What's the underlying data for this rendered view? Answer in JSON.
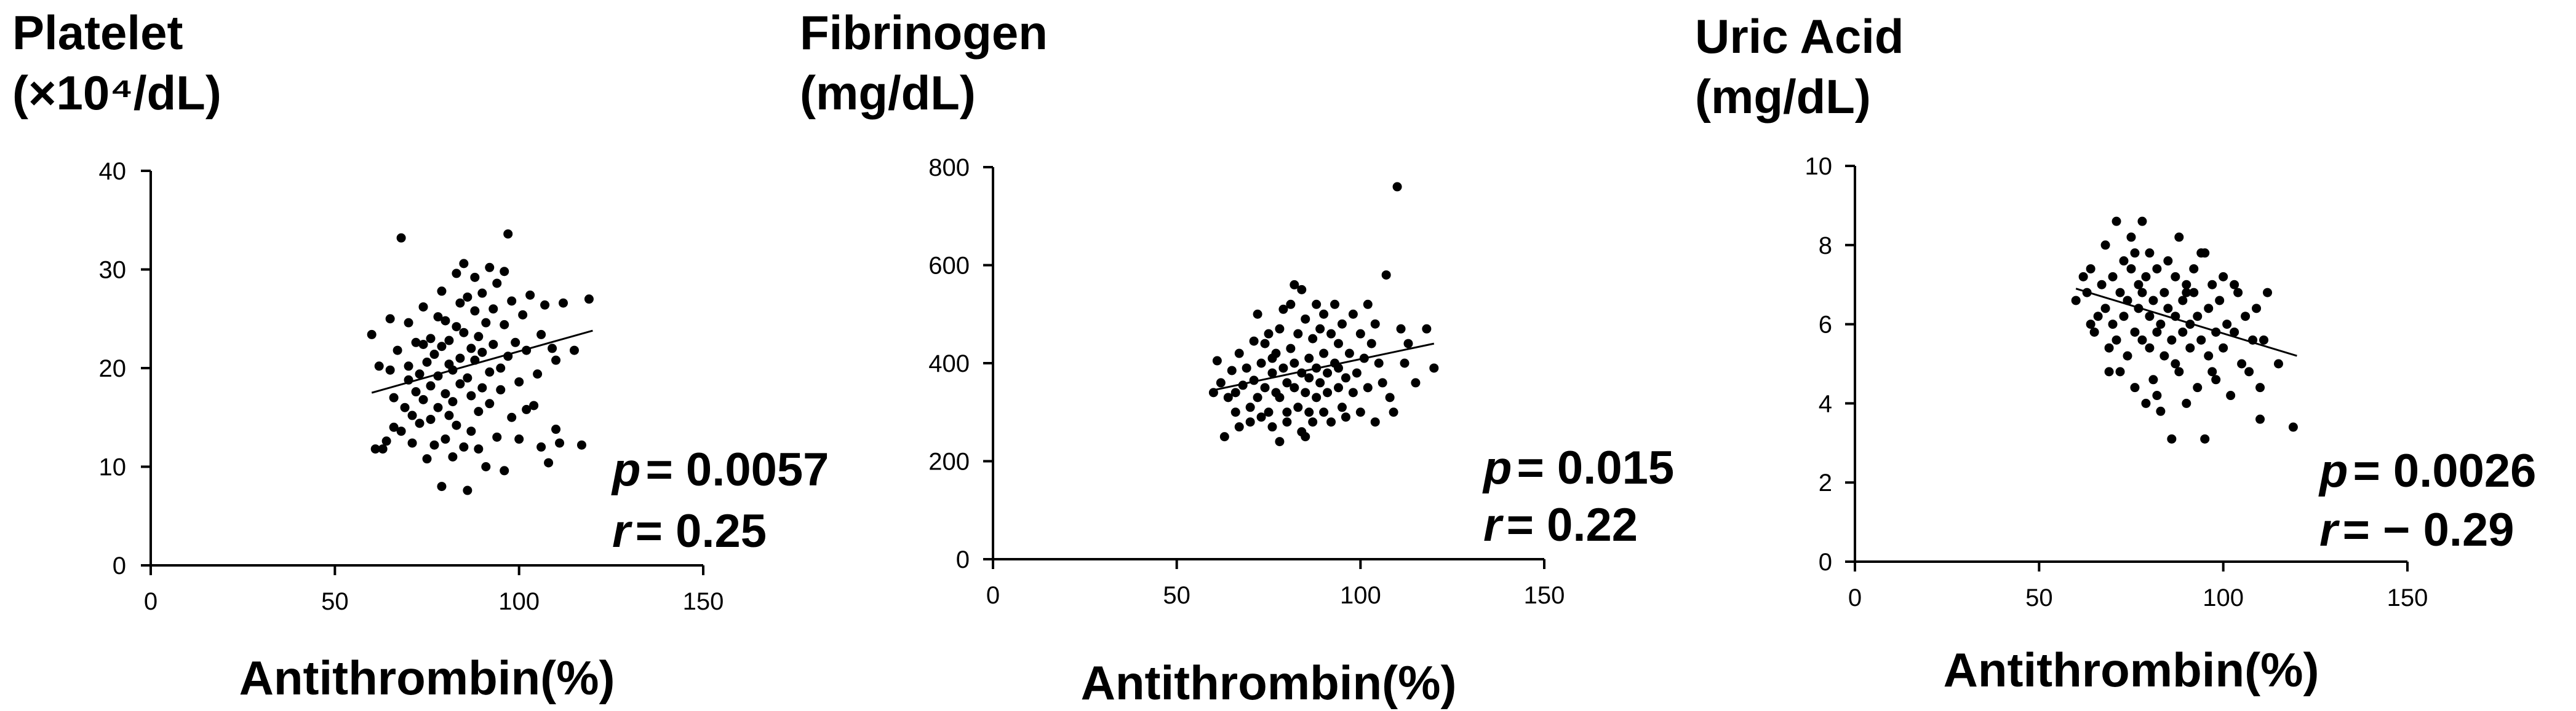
{
  "chart_data": [
    {
      "type": "scatter",
      "ylabel_lines": [
        "Platelet",
        "(×10⁴/dL)"
      ],
      "xlabel": "Antithrombin(%)",
      "xlim": [
        0,
        150
      ],
      "ylim": [
        0,
        40
      ],
      "xticks": [
        0,
        50,
        100,
        150
      ],
      "yticks": [
        0,
        10,
        20,
        30,
        40
      ],
      "stats": {
        "p_label": "p",
        "p_value": "= 0.0057",
        "r_label": "r",
        "r_value": "= 0.25"
      },
      "trend": [
        [
          60,
          17.5
        ],
        [
          120,
          23.8
        ]
      ],
      "points": [
        [
          60,
          23.4
        ],
        [
          61,
          11.8
        ],
        [
          63,
          11.8
        ],
        [
          64,
          12.6
        ],
        [
          65,
          19.8
        ],
        [
          66,
          17.0
        ],
        [
          66,
          14.0
        ],
        [
          67,
          21.8
        ],
        [
          68,
          33.2
        ],
        [
          68,
          13.6
        ],
        [
          69,
          16.0
        ],
        [
          70,
          18.8
        ],
        [
          70,
          20.2
        ],
        [
          71,
          15.2
        ],
        [
          71,
          12.4
        ],
        [
          72,
          22.6
        ],
        [
          72,
          17.6
        ],
        [
          73,
          14.4
        ],
        [
          73,
          19.4
        ],
        [
          74,
          26.2
        ],
        [
          74,
          16.8
        ],
        [
          75,
          20.6
        ],
        [
          75,
          10.8
        ],
        [
          76,
          23.0
        ],
        [
          76,
          18.2
        ],
        [
          76,
          14.8
        ],
        [
          77,
          21.4
        ],
        [
          77,
          12.2
        ],
        [
          78,
          25.2
        ],
        [
          78,
          19.2
        ],
        [
          78,
          16.0
        ],
        [
          79,
          8.0
        ],
        [
          79,
          22.2
        ],
        [
          79,
          27.8
        ],
        [
          80,
          24.8
        ],
        [
          80,
          17.4
        ],
        [
          80,
          12.8
        ],
        [
          81,
          20.4
        ],
        [
          81,
          22.8
        ],
        [
          82,
          16.6
        ],
        [
          82,
          19.8
        ],
        [
          82,
          11.0
        ],
        [
          83,
          29.6
        ],
        [
          83,
          24.2
        ],
        [
          83,
          14.2
        ],
        [
          84,
          21.0
        ],
        [
          84,
          26.6
        ],
        [
          84,
          18.4
        ],
        [
          85,
          30.6
        ],
        [
          85,
          23.6
        ],
        [
          85,
          12.0
        ],
        [
          86,
          19.0
        ],
        [
          86,
          7.6
        ],
        [
          86,
          27.2
        ],
        [
          87,
          22.0
        ],
        [
          87,
          17.2
        ],
        [
          87,
          13.6
        ],
        [
          88,
          25.8
        ],
        [
          88,
          20.8
        ],
        [
          88,
          29.2
        ],
        [
          89,
          15.6
        ],
        [
          89,
          23.2
        ],
        [
          90,
          18.0
        ],
        [
          90,
          27.6
        ],
        [
          90,
          21.6
        ],
        [
          91,
          10.0
        ],
        [
          91,
          24.6
        ],
        [
          92,
          30.2
        ],
        [
          92,
          19.6
        ],
        [
          92,
          16.4
        ],
        [
          93,
          26.0
        ],
        [
          93,
          22.4
        ],
        [
          94,
          13.0
        ],
        [
          94,
          28.6
        ],
        [
          95,
          20.0
        ],
        [
          95,
          17.8
        ],
        [
          96,
          24.4
        ],
        [
          96,
          9.6
        ],
        [
          97,
          33.6
        ],
        [
          97,
          21.2
        ],
        [
          98,
          26.8
        ],
        [
          98,
          15.0
        ],
        [
          99,
          22.6
        ],
        [
          100,
          18.6
        ],
        [
          100,
          12.8
        ],
        [
          101,
          25.4
        ],
        [
          102,
          21.8
        ],
        [
          103,
          27.4
        ],
        [
          104,
          16.2
        ],
        [
          105,
          19.4
        ],
        [
          106,
          23.4
        ],
        [
          106,
          12.0
        ],
        [
          107,
          26.4
        ],
        [
          108,
          10.4
        ],
        [
          109,
          22.0
        ],
        [
          110,
          13.8
        ],
        [
          110,
          20.8
        ],
        [
          111,
          12.4
        ],
        [
          112,
          26.6
        ],
        [
          115,
          21.8
        ],
        [
          117,
          12.2
        ],
        [
          119,
          27.0
        ],
        [
          62,
          20.2
        ],
        [
          65,
          25.0
        ],
        [
          70,
          24.6
        ],
        [
          74,
          22.4
        ],
        [
          81,
          15.2
        ],
        [
          89,
          11.8
        ],
        [
          96,
          29.8
        ],
        [
          102,
          15.8
        ]
      ]
    },
    {
      "type": "scatter",
      "ylabel_lines": [
        "Fibrinogen",
        "(mg/dL)"
      ],
      "xlabel": "Antithrombin(%)",
      "xlim": [
        0,
        150
      ],
      "ylim": [
        0,
        800
      ],
      "xticks": [
        0,
        50,
        100,
        150
      ],
      "yticks": [
        0,
        200,
        400,
        600,
        800
      ],
      "stats": {
        "p_label": "p",
        "p_value": "= 0.015",
        "r_label": "r",
        "r_value": "= 0.22"
      },
      "trend": [
        [
          60,
          345
        ],
        [
          120,
          440
        ]
      ],
      "points": [
        [
          60,
          340
        ],
        [
          61,
          405
        ],
        [
          62,
          360
        ],
        [
          63,
          250
        ],
        [
          64,
          330
        ],
        [
          65,
          385
        ],
        [
          66,
          300
        ],
        [
          67,
          420
        ],
        [
          67,
          270
        ],
        [
          68,
          355
        ],
        [
          69,
          390
        ],
        [
          70,
          310
        ],
        [
          70,
          280
        ],
        [
          71,
          445
        ],
        [
          71,
          365
        ],
        [
          72,
          500
        ],
        [
          72,
          330
        ],
        [
          73,
          400
        ],
        [
          73,
          290
        ],
        [
          74,
          350
        ],
        [
          74,
          440
        ],
        [
          75,
          300
        ],
        [
          75,
          460
        ],
        [
          76,
          380
        ],
        [
          76,
          270
        ],
        [
          77,
          420
        ],
        [
          77,
          340
        ],
        [
          78,
          330
        ],
        [
          78,
          470
        ],
        [
          78,
          240
        ],
        [
          79,
          390
        ],
        [
          79,
          510
        ],
        [
          80,
          300
        ],
        [
          80,
          360
        ],
        [
          80,
          280
        ],
        [
          81,
          430
        ],
        [
          81,
          520
        ],
        [
          82,
          350
        ],
        [
          82,
          400
        ],
        [
          82,
          560
        ],
        [
          83,
          310
        ],
        [
          83,
          460
        ],
        [
          84,
          380
        ],
        [
          84,
          260
        ],
        [
          84,
          550
        ],
        [
          85,
          340
        ],
        [
          85,
          490
        ],
        [
          86,
          410
        ],
        [
          86,
          300
        ],
        [
          86,
          370
        ],
        [
          87,
          450
        ],
        [
          87,
          280
        ],
        [
          88,
          390
        ],
        [
          88,
          520
        ],
        [
          88,
          330
        ],
        [
          89,
          360
        ],
        [
          89,
          470
        ],
        [
          90,
          300
        ],
        [
          90,
          420
        ],
        [
          90,
          500
        ],
        [
          91,
          340
        ],
        [
          91,
          380
        ],
        [
          92,
          460
        ],
        [
          92,
          280
        ],
        [
          93,
          400
        ],
        [
          93,
          520
        ],
        [
          94,
          350
        ],
        [
          94,
          440
        ],
        [
          95,
          310
        ],
        [
          95,
          480
        ],
        [
          96,
          370
        ],
        [
          96,
          290
        ],
        [
          97,
          420
        ],
        [
          98,
          500
        ],
        [
          98,
          340
        ],
        [
          99,
          380
        ],
        [
          100,
          460
        ],
        [
          100,
          300
        ],
        [
          101,
          410
        ],
        [
          102,
          520
        ],
        [
          102,
          350
        ],
        [
          103,
          440
        ],
        [
          104,
          280
        ],
        [
          105,
          400
        ],
        [
          106,
          360
        ],
        [
          107,
          580
        ],
        [
          108,
          330
        ],
        [
          109,
          300
        ],
        [
          110,
          760
        ],
        [
          111,
          470
        ],
        [
          112,
          400
        ],
        [
          113,
          440
        ],
        [
          115,
          360
        ],
        [
          118,
          470
        ],
        [
          120,
          390
        ],
        [
          66,
          340
        ],
        [
          76,
          410
        ],
        [
          85,
          250
        ],
        [
          94,
          390
        ],
        [
          104,
          480
        ]
      ]
    },
    {
      "type": "scatter",
      "ylabel_lines": [
        "Uric Acid",
        "(mg/dL)"
      ],
      "xlabel": "Antithrombin(%)",
      "xlim": [
        0,
        150
      ],
      "ylim": [
        0,
        10
      ],
      "xticks": [
        0,
        50,
        100,
        150
      ],
      "yticks": [
        0,
        2,
        4,
        6,
        8,
        10
      ],
      "stats": {
        "p_label": "p",
        "p_value": "= 0.0026",
        "r_label": "r",
        "r_value": "= − 0.29"
      },
      "trend": [
        [
          60,
          6.9
        ],
        [
          120,
          5.2
        ]
      ],
      "points": [
        [
          60,
          6.6
        ],
        [
          62,
          7.2
        ],
        [
          63,
          6.8
        ],
        [
          64,
          7.4
        ],
        [
          65,
          5.8
        ],
        [
          66,
          6.2
        ],
        [
          67,
          7.0
        ],
        [
          68,
          8.0
        ],
        [
          68,
          6.4
        ],
        [
          69,
          5.4
        ],
        [
          70,
          7.2
        ],
        [
          70,
          6.0
        ],
        [
          71,
          8.6
        ],
        [
          71,
          5.6
        ],
        [
          72,
          6.8
        ],
        [
          72,
          4.8
        ],
        [
          73,
          7.6
        ],
        [
          73,
          6.2
        ],
        [
          74,
          5.2
        ],
        [
          74,
          6.6
        ],
        [
          75,
          8.2
        ],
        [
          75,
          7.4
        ],
        [
          76,
          5.8
        ],
        [
          76,
          4.4
        ],
        [
          77,
          6.4
        ],
        [
          77,
          7.0
        ],
        [
          78,
          8.6
        ],
        [
          78,
          5.6
        ],
        [
          78,
          6.8
        ],
        [
          79,
          4.0
        ],
        [
          79,
          7.2
        ],
        [
          80,
          6.2
        ],
        [
          80,
          5.4
        ],
        [
          80,
          7.8
        ],
        [
          81,
          6.6
        ],
        [
          81,
          4.6
        ],
        [
          82,
          5.8
        ],
        [
          82,
          7.4
        ],
        [
          83,
          6.0
        ],
        [
          83,
          3.8
        ],
        [
          84,
          6.8
        ],
        [
          84,
          5.2
        ],
        [
          85,
          7.6
        ],
        [
          85,
          6.4
        ],
        [
          86,
          3.1
        ],
        [
          86,
          5.6
        ],
        [
          87,
          7.2
        ],
        [
          87,
          6.2
        ],
        [
          88,
          8.2
        ],
        [
          88,
          4.8
        ],
        [
          89,
          6.6
        ],
        [
          89,
          5.8
        ],
        [
          90,
          7.0
        ],
        [
          90,
          4.0
        ],
        [
          91,
          6.0
        ],
        [
          91,
          5.4
        ],
        [
          92,
          7.4
        ],
        [
          92,
          6.8
        ],
        [
          93,
          4.4
        ],
        [
          93,
          6.2
        ],
        [
          94,
          5.6
        ],
        [
          95,
          3.1
        ],
        [
          95,
          7.8
        ],
        [
          96,
          6.4
        ],
        [
          96,
          5.2
        ],
        [
          97,
          7.0
        ],
        [
          98,
          5.8
        ],
        [
          98,
          4.6
        ],
        [
          99,
          6.6
        ],
        [
          100,
          5.4
        ],
        [
          100,
          7.2
        ],
        [
          101,
          6.0
        ],
        [
          102,
          4.2
        ],
        [
          103,
          5.8
        ],
        [
          104,
          6.8
        ],
        [
          105,
          5.0
        ],
        [
          106,
          6.2
        ],
        [
          107,
          4.8
        ],
        [
          108,
          5.6
        ],
        [
          109,
          6.4
        ],
        [
          110,
          4.4
        ],
        [
          110,
          3.6
        ],
        [
          111,
          5.6
        ],
        [
          112,
          6.8
        ],
        [
          115,
          5.0
        ],
        [
          119,
          3.4
        ],
        [
          64,
          6.0
        ],
        [
          76,
          7.8
        ],
        [
          82,
          4.2
        ],
        [
          90,
          6.8
        ],
        [
          97,
          4.8
        ],
        [
          103,
          7.0
        ],
        [
          69,
          4.8
        ],
        [
          87,
          5.0
        ],
        [
          94,
          7.8
        ]
      ]
    }
  ]
}
